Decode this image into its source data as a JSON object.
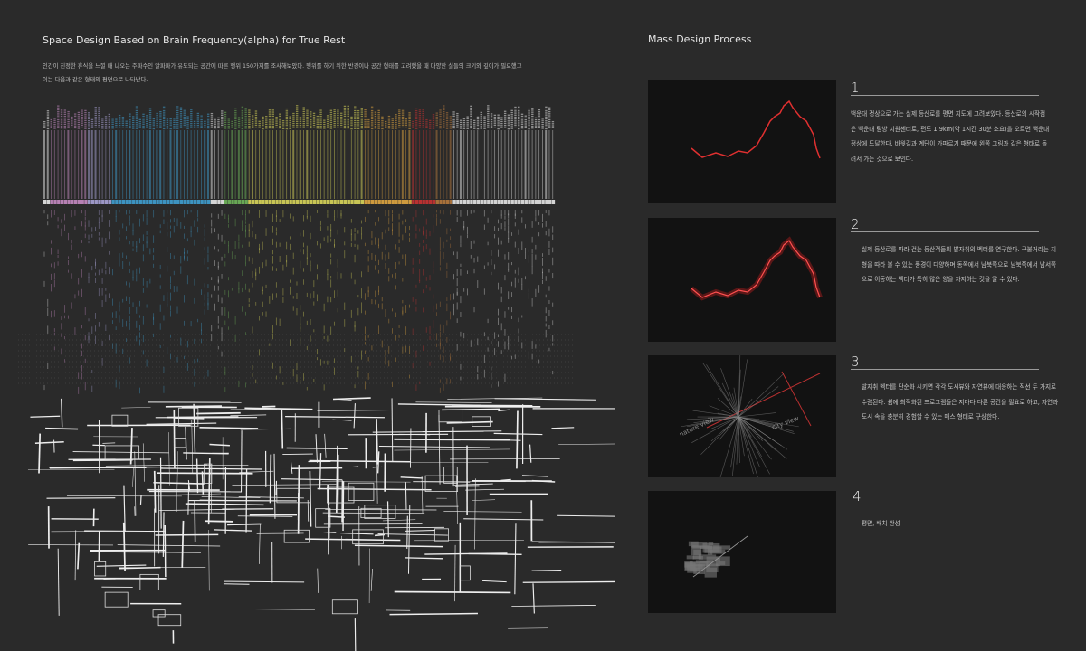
{
  "left": {
    "title": "Space Design Based on Brain Frequency(alpha) for True Rest",
    "intro_line1": "인간이 진정한 휴식을 느낄 때 나오는 주파수인 알파파가 유도되는 공간에 따른 행위 150가지를 조사해보았다. 행위를 하기 위한 반경이나 공간 형태를 고려했을 때 다양한 실들의 크기와 깊이가 필요했고",
    "intro_line2": "이는 다음과 같은 형태의 평면으로 나타난다.",
    "spectrum_colors": [
      "#e8e8e8",
      "#c58ac2",
      "#a9a3d6",
      "#3f9fd0",
      "#e8e8e8",
      "#6fb55a",
      "#d9d65a",
      "#e0a640",
      "#c83232",
      "#b4783c",
      "#e6e6e6"
    ]
  },
  "right": {
    "title": "Mass Design Process",
    "steps": [
      {
        "number": "1",
        "text": "백운대 정상으로 가는 실제 등산로를 평면 지도에 그려보았다. 등산로의 시작점은 백운대 탐방 지원센터로, 편도 1.9km(약 1시간 30분 소요)을 오르면 백운대 정상에 도달한다. 바윗길과 계단이 가파르기 때문에 왼쪽 그림과 같은 형태로 돌려서 가는 것으로 보인다."
      },
      {
        "number": "2",
        "text": "실제 등산로를 따라 걷는 등산객들의 발자취의 벡터를 연구한다. 구불거리는 지형을 따라 볼 수 있는 풍경이 다양하며 동쪽에서 남북쪽으로 남북쪽에서 남서쪽으로 이동하는 벡터가 특히 많은 양을 차지하는 것을 알 수 있다."
      },
      {
        "number": "3",
        "text": "발자취 벡터를 단순화 시키면 각각 도시뷰와 자연뷰에 대응하는 직선 두 가지로 수렴된다. 쉼에 최적화된 프로그램들은 저마다 다른 공간을 필요로 하고, 자연과 도시 속을 충분히 경험할 수 있는 매스 형태로 구상한다."
      },
      {
        "number": "4",
        "text": "평면, 배치 완성"
      }
    ],
    "image3_labels": {
      "nature": "nature view",
      "city": "city view"
    },
    "route_color": "#e03030"
  }
}
